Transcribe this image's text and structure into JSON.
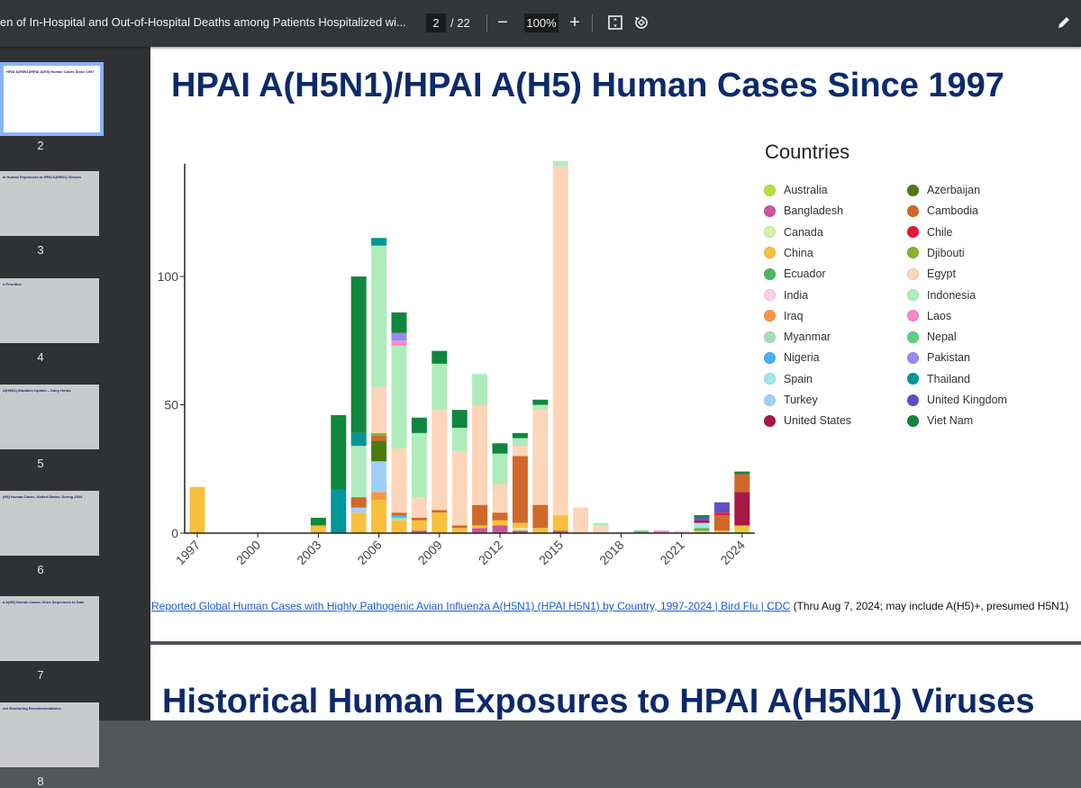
{
  "toolbar": {
    "document_title": "en of In-Hospital and Out-of-Hospital Deaths among Patients Hospitalized wi...",
    "current_page": "2",
    "total_pages": "/ 22",
    "zoom": "100%",
    "zoom_out_icon": "minus-icon",
    "zoom_in_icon": "plus-icon",
    "fit_icon": "fit-page-icon",
    "rotate_icon": "rotate-icon",
    "edit_icon": "pencil-icon"
  },
  "thumbnails": [
    {
      "page": "2",
      "title": "HPAI A(H5N1)/HPAI A(H5) Human Cases Since 1997",
      "selected": true
    },
    {
      "page": "3",
      "title": "al Human Exposures to HPAI A(H5N1) Viruses"
    },
    {
      "page": "4",
      "title": "s Priorities"
    },
    {
      "page": "5",
      "title": "A(H5N1) Situation Update – Dairy Herds"
    },
    {
      "page": "6",
      "title": "(H5) Human Cases, United States, During 2024"
    },
    {
      "page": "7",
      "title": "a A(H5) Human Cases–Virus Sequences to Date"
    },
    {
      "page": "8",
      "title": "om Monitoring Recommendations"
    }
  ],
  "slide1": {
    "title": "HPAI A(H5N1)/HPAI A(H5) Human Cases Since 1997",
    "caption_link": "Reported Global Human Cases with Highly Pathogenic Avian Influenza A(H5N1) (HPAI H5N1) by Country, 1997-2024 | Bird Flu | CDC",
    "caption_note": " (Thru Aug 7, 2024; may include A(H5)+, presumed H5N1)"
  },
  "slide2": {
    "title": "Historical Human Exposures to HPAI A(H5N1) Viruses"
  },
  "chart_data": {
    "type": "bar",
    "stacked": true,
    "title": "",
    "legend_title": "Countries",
    "legend_placement": "right",
    "xlabel": "",
    "ylabel": "",
    "ylim": [
      0,
      145
    ],
    "yticks": [
      0,
      50,
      100
    ],
    "xticks": [
      "1997",
      "2000",
      "2003",
      "2006",
      "2009",
      "2012",
      "2015",
      "2018",
      "2021",
      "2024"
    ],
    "categories": [
      "1997",
      "1998",
      "1999",
      "2000",
      "2001",
      "2002",
      "2003",
      "2004",
      "2005",
      "2006",
      "2007",
      "2008",
      "2009",
      "2010",
      "2011",
      "2012",
      "2013",
      "2014",
      "2015",
      "2016",
      "2017",
      "2018",
      "2019",
      "2020",
      "2021",
      "2022",
      "2023",
      "2024"
    ],
    "countries": [
      {
        "name": "Australia",
        "color": "#b5e33b"
      },
      {
        "name": "Bangladesh",
        "color": "#cc5599"
      },
      {
        "name": "Canada",
        "color": "#d4f0a0"
      },
      {
        "name": "China",
        "color": "#f8c03c"
      },
      {
        "name": "Ecuador",
        "color": "#4cbb5c"
      },
      {
        "name": "India",
        "color": "#fdd0e8"
      },
      {
        "name": "Iraq",
        "color": "#f99645"
      },
      {
        "name": "Myanmar",
        "color": "#9ee0b8"
      },
      {
        "name": "Nigeria",
        "color": "#4ab0f5"
      },
      {
        "name": "Spain",
        "color": "#a0e8e8"
      },
      {
        "name": "Turkey",
        "color": "#a0d0fa"
      },
      {
        "name": "United States",
        "color": "#a81845"
      },
      {
        "name": "Azerbaijan",
        "color": "#4f7a10"
      },
      {
        "name": "Cambodia",
        "color": "#d0682a"
      },
      {
        "name": "Chile",
        "color": "#e8163c"
      },
      {
        "name": "Djibouti",
        "color": "#8ab22a"
      },
      {
        "name": "Egypt",
        "color": "#fdd5b8"
      },
      {
        "name": "Indonesia",
        "color": "#b0ebbc"
      },
      {
        "name": "Laos",
        "color": "#fb88c8"
      },
      {
        "name": "Nepal",
        "color": "#60d080"
      },
      {
        "name": "Pakistan",
        "color": "#9a88f5"
      },
      {
        "name": "Thailand",
        "color": "#00979a"
      },
      {
        "name": "United Kingdom",
        "color": "#6050c8"
      },
      {
        "name": "Viet Nam",
        "color": "#10873e"
      }
    ],
    "data": {
      "1997": {
        "China": 18
      },
      "2003": {
        "China": 3,
        "Viet Nam": 3
      },
      "2004": {
        "Thailand": 17,
        "Viet Nam": 29
      },
      "2005": {
        "Cambodia": 4,
        "China": 8,
        "Indonesia": 20,
        "Thailand": 5,
        "Turkey": 2,
        "Viet Nam": 61
      },
      "2006": {
        "Azerbaijan": 8,
        "Cambodia": 2,
        "China": 13,
        "Djibouti": 1,
        "Egypt": 18,
        "Indonesia": 55,
        "Iraq": 3,
        "Thailand": 3,
        "Turkey": 12
      },
      "2007": {
        "Cambodia": 1,
        "China": 5,
        "Egypt": 25,
        "Indonesia": 40,
        "Laos": 2,
        "Myanmar": 1,
        "Nigeria": 1,
        "Pakistan": 3,
        "Viet Nam": 8
      },
      "2008": {
        "Bangladesh": 1,
        "Cambodia": 1,
        "China": 4,
        "Egypt": 8,
        "Indonesia": 25,
        "Viet Nam": 6
      },
      "2009": {
        "Cambodia": 1,
        "China": 8,
        "Egypt": 39,
        "Indonesia": 18,
        "Viet Nam": 5
      },
      "2010": {
        "Cambodia": 1,
        "China": 2,
        "Egypt": 29,
        "Indonesia": 9,
        "Viet Nam": 7
      },
      "2011": {
        "Bangladesh": 2,
        "Cambodia": 8,
        "China": 1,
        "Egypt": 39,
        "Indonesia": 12
      },
      "2012": {
        "Bangladesh": 3,
        "Cambodia": 3,
        "China": 2,
        "Egypt": 11,
        "Indonesia": 12,
        "Viet Nam": 4
      },
      "2013": {
        "Bangladesh": 1,
        "Cambodia": 26,
        "Canada": 1,
        "China": 2,
        "Egypt": 4,
        "Indonesia": 3,
        "Viet Nam": 2
      },
      "2014": {
        "Cambodia": 9,
        "China": 2,
        "Egypt": 37,
        "Indonesia": 2,
        "Viet Nam": 2
      },
      "2015": {
        "Bangladesh": 1,
        "China": 6,
        "Egypt": 136,
        "Indonesia": 2
      },
      "2016": {
        "Egypt": 10
      },
      "2017": {
        "Egypt": 3,
        "Indonesia": 1
      },
      "2019": {
        "Nepal": 1
      },
      "2020": {
        "Laos": 1
      },
      "2021": {
        "India": 1
      },
      "2022": {
        "China": 1,
        "Ecuador": 1,
        "Spain": 2,
        "United Kingdom": 1,
        "United States": 1,
        "Viet Nam": 1
      },
      "2023": {
        "Cambodia": 6,
        "Chile": 1,
        "China": 1,
        "United Kingdom": 4
      },
      "2024": {
        "Australia": 1,
        "Cambodia": 7,
        "China": 2,
        "United States": 13,
        "Viet Nam": 1
      }
    }
  }
}
